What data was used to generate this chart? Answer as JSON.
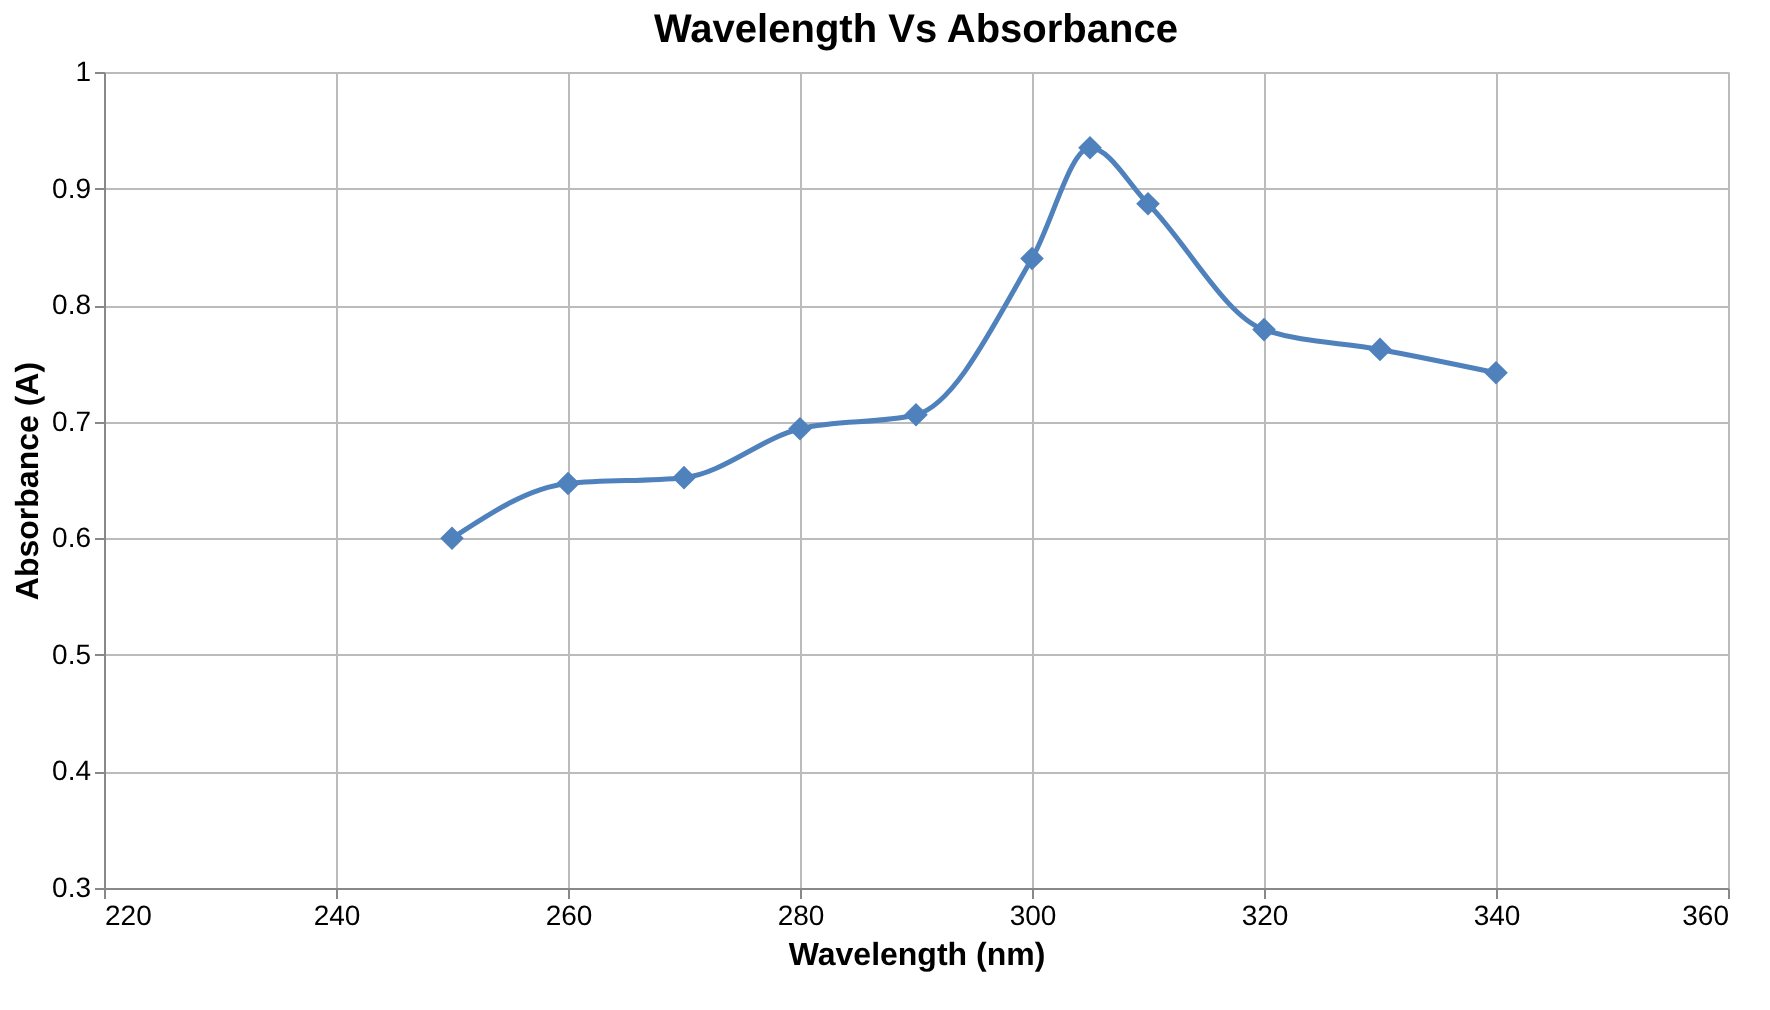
{
  "chart_data": {
    "type": "line",
    "title": "Wavelength Vs Absorbance",
    "xlabel": "Wavelength (nm)",
    "ylabel": "Absorbance (A)",
    "x": [
      250,
      260,
      270,
      280,
      290,
      300,
      305,
      310,
      320,
      330,
      340
    ],
    "series": [
      {
        "color": "#4f81bd",
        "values": [
          0.6,
          0.647,
          0.652,
          0.694,
          0.706,
          0.84,
          0.935,
          0.887,
          0.779,
          0.762,
          0.742
        ]
      }
    ],
    "xlim": [
      220,
      360
    ],
    "xticks": [
      220,
      240,
      260,
      280,
      300,
      320,
      340,
      360
    ],
    "ylim": [
      0.3,
      1
    ],
    "yticks": [
      0.3,
      0.4,
      0.5,
      0.6,
      0.7,
      0.8,
      0.9,
      1
    ],
    "grid": true,
    "marker": "diamond",
    "line_style": "solid"
  }
}
